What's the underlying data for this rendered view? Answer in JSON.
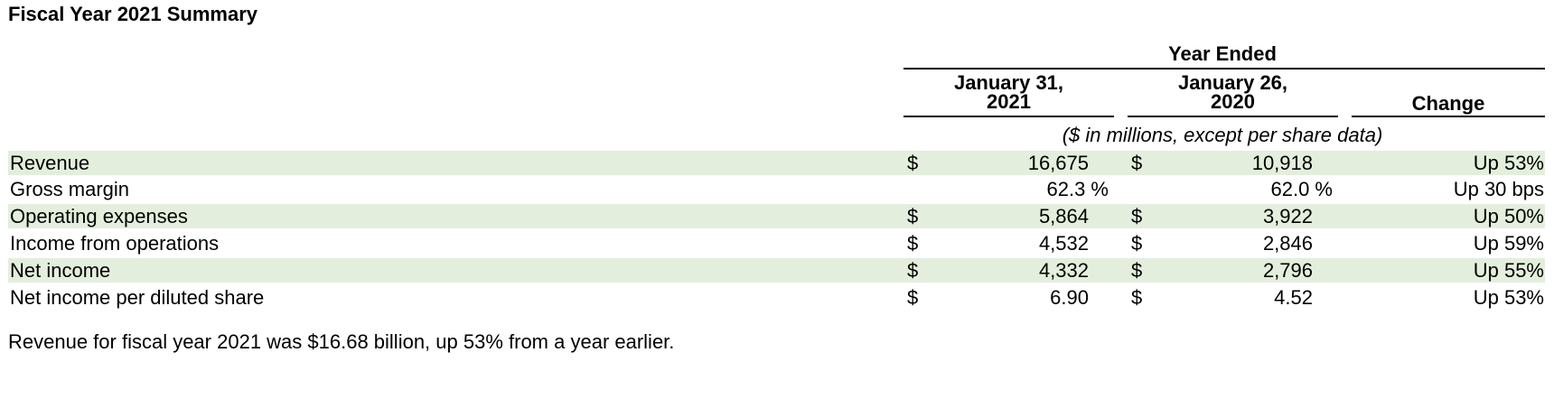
{
  "title": "Fiscal Year 2021 Summary",
  "header": {
    "group": "Year Ended",
    "col1_line1": "January 31,",
    "col1_line2": "2021",
    "col2_line1": "January 26,",
    "col2_line2": "2020",
    "col3": "Change",
    "units": "($ in millions, except per share data)"
  },
  "rows": [
    {
      "label": "Revenue",
      "cur1": "$",
      "val1": "16,675",
      "cur2": "$",
      "val2": "10,918",
      "change": "Up 53%"
    },
    {
      "label": "Gross margin",
      "val1": "62.3 %",
      "val2": "62.0 %",
      "change": "Up 30 bps"
    },
    {
      "label": "Operating expenses",
      "cur1": "$",
      "val1": "5,864",
      "cur2": "$",
      "val2": "3,922",
      "change": "Up 50%"
    },
    {
      "label": "Income from operations",
      "cur1": "$",
      "val1": "4,532",
      "cur2": "$",
      "val2": "2,846",
      "change": "Up 59%"
    },
    {
      "label": "Net income",
      "cur1": "$",
      "val1": "4,332",
      "cur2": "$",
      "val2": "2,796",
      "change": "Up 55%"
    },
    {
      "label": "Net income per diluted share",
      "cur1": "$",
      "val1": "6.90",
      "cur2": "$",
      "val2": "4.52",
      "change": "Up 53%"
    }
  ],
  "note": "Revenue for fiscal year 2021 was $16.68 billion, up 53% from a year earlier.",
  "colors": {
    "row_shade": "#e3efdc"
  }
}
